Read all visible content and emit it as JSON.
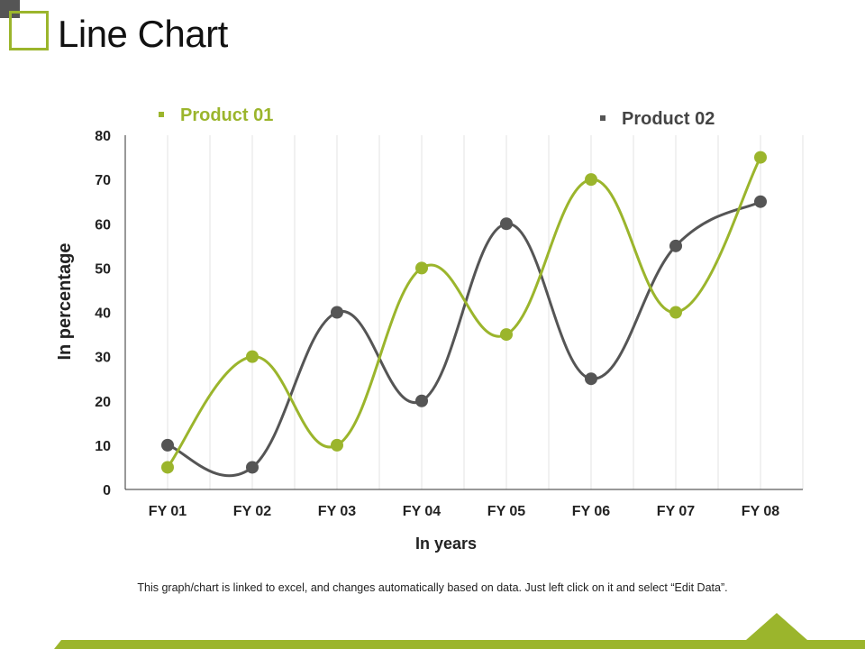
{
  "slide": {
    "title": "Line Chart",
    "footnote": "This graph/chart is linked to excel, and changes automatically based on data. Just left click on it and select “Edit Data”."
  },
  "colors": {
    "accent": "#9bb52c",
    "dark": "#555555",
    "grid": "#e3e3e3",
    "axis": "#333333"
  },
  "chart_data": {
    "type": "line",
    "smooth": true,
    "title": "",
    "xlabel": "In years",
    "ylabel": "In percentage",
    "categories": [
      "FY 01",
      "FY 02",
      "FY 03",
      "FY 04",
      "FY 05",
      "FY 06",
      "FY 07",
      "FY 08"
    ],
    "ylim": [
      0,
      80
    ],
    "yticks": [
      0,
      10,
      20,
      30,
      40,
      50,
      60,
      70,
      80
    ],
    "grid": "vertical",
    "legend_position": "top",
    "series": [
      {
        "name": "Product 01",
        "color": "#9bb52c",
        "values": [
          5,
          30,
          10,
          50,
          35,
          70,
          40,
          75
        ]
      },
      {
        "name": "Product 02",
        "color": "#555555",
        "values": [
          10,
          5,
          40,
          20,
          60,
          25,
          55,
          65
        ]
      }
    ]
  }
}
